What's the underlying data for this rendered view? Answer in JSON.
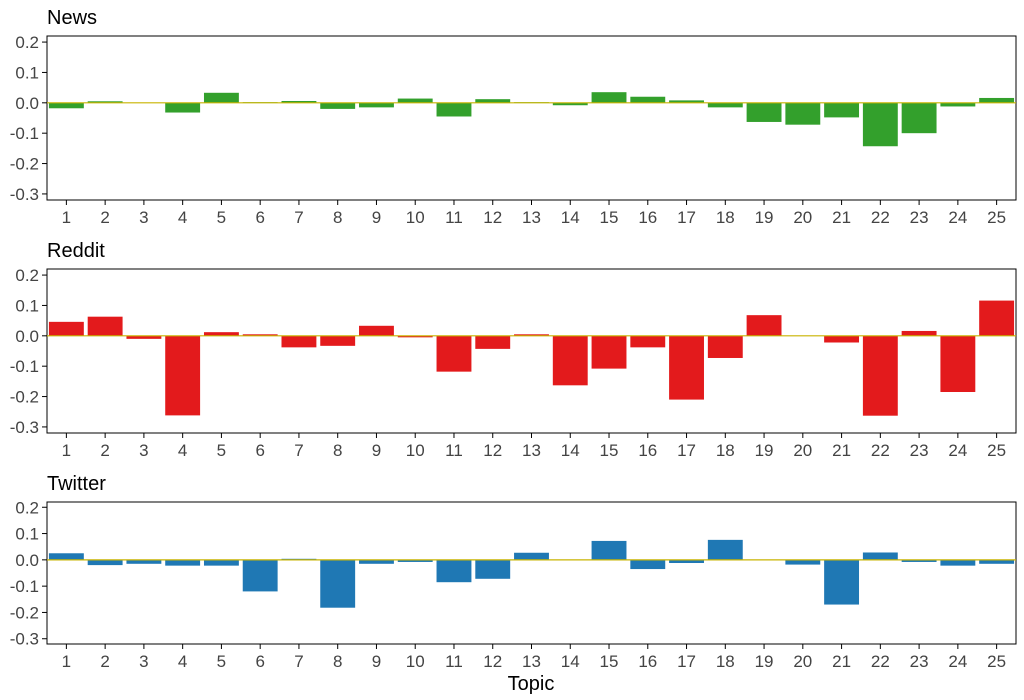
{
  "colors": {
    "News": "#33a02c",
    "Reddit": "#e31a1c",
    "Twitter": "#1f78b4",
    "zero_line": "#c8b400"
  },
  "chart_data": [
    {
      "type": "bar",
      "title": "News",
      "categories": [
        "1",
        "2",
        "3",
        "4",
        "5",
        "6",
        "7",
        "8",
        "9",
        "10",
        "11",
        "12",
        "13",
        "14",
        "15",
        "16",
        "17",
        "18",
        "19",
        "20",
        "21",
        "22",
        "23",
        "24",
        "25"
      ],
      "values": [
        -0.018,
        0.005,
        0.001,
        -0.032,
        0.033,
        0.002,
        0.006,
        -0.02,
        -0.015,
        0.014,
        -0.045,
        0.012,
        0.002,
        -0.008,
        0.035,
        0.02,
        0.008,
        -0.015,
        -0.063,
        -0.072,
        -0.048,
        -0.143,
        -0.1,
        -0.012,
        0.016
      ],
      "ylim": [
        -0.32,
        0.22
      ],
      "yticks": [
        -0.3,
        -0.2,
        -0.1,
        0.0,
        0.1,
        0.2
      ],
      "ytick_labels": [
        "-0.3",
        "-0.2",
        "-0.1",
        "0.0",
        "0.1",
        "0.2"
      ],
      "xlabel": "",
      "ylabel": ""
    },
    {
      "type": "bar",
      "title": "Reddit",
      "categories": [
        "1",
        "2",
        "3",
        "4",
        "5",
        "6",
        "7",
        "8",
        "9",
        "10",
        "11",
        "12",
        "13",
        "14",
        "15",
        "16",
        "17",
        "18",
        "19",
        "20",
        "21",
        "22",
        "23",
        "24",
        "25"
      ],
      "values": [
        0.046,
        0.063,
        -0.01,
        -0.262,
        0.012,
        0.005,
        -0.038,
        -0.033,
        0.033,
        -0.005,
        -0.118,
        -0.043,
        0.005,
        -0.163,
        -0.108,
        -0.038,
        -0.21,
        -0.073,
        0.068,
        0.001,
        -0.022,
        -0.263,
        0.016,
        -0.185,
        0.116
      ],
      "ylim": [
        -0.32,
        0.22
      ],
      "yticks": [
        -0.3,
        -0.2,
        -0.1,
        0.0,
        0.1,
        0.2
      ],
      "ytick_labels": [
        "-0.3",
        "-0.2",
        "-0.1",
        "0.0",
        "0.1",
        "0.2"
      ],
      "xlabel": "",
      "ylabel": ""
    },
    {
      "type": "bar",
      "title": "Twitter",
      "categories": [
        "1",
        "2",
        "3",
        "4",
        "5",
        "6",
        "7",
        "8",
        "9",
        "10",
        "11",
        "12",
        "13",
        "14",
        "15",
        "16",
        "17",
        "18",
        "19",
        "20",
        "21",
        "22",
        "23",
        "24",
        "25"
      ],
      "values": [
        0.025,
        -0.02,
        -0.015,
        -0.022,
        -0.022,
        -0.12,
        0.004,
        -0.182,
        -0.015,
        -0.008,
        -0.085,
        -0.072,
        0.027,
        0.001,
        0.072,
        -0.035,
        -0.012,
        0.076,
        0.001,
        -0.018,
        -0.17,
        0.028,
        -0.008,
        -0.022,
        -0.015
      ],
      "ylim": [
        -0.32,
        0.22
      ],
      "yticks": [
        -0.3,
        -0.2,
        -0.1,
        0.0,
        0.1,
        0.2
      ],
      "ytick_labels": [
        "-0.3",
        "-0.2",
        "-0.1",
        "0.0",
        "0.1",
        "0.2"
      ],
      "xlabel": "Topic",
      "ylabel": ""
    }
  ]
}
